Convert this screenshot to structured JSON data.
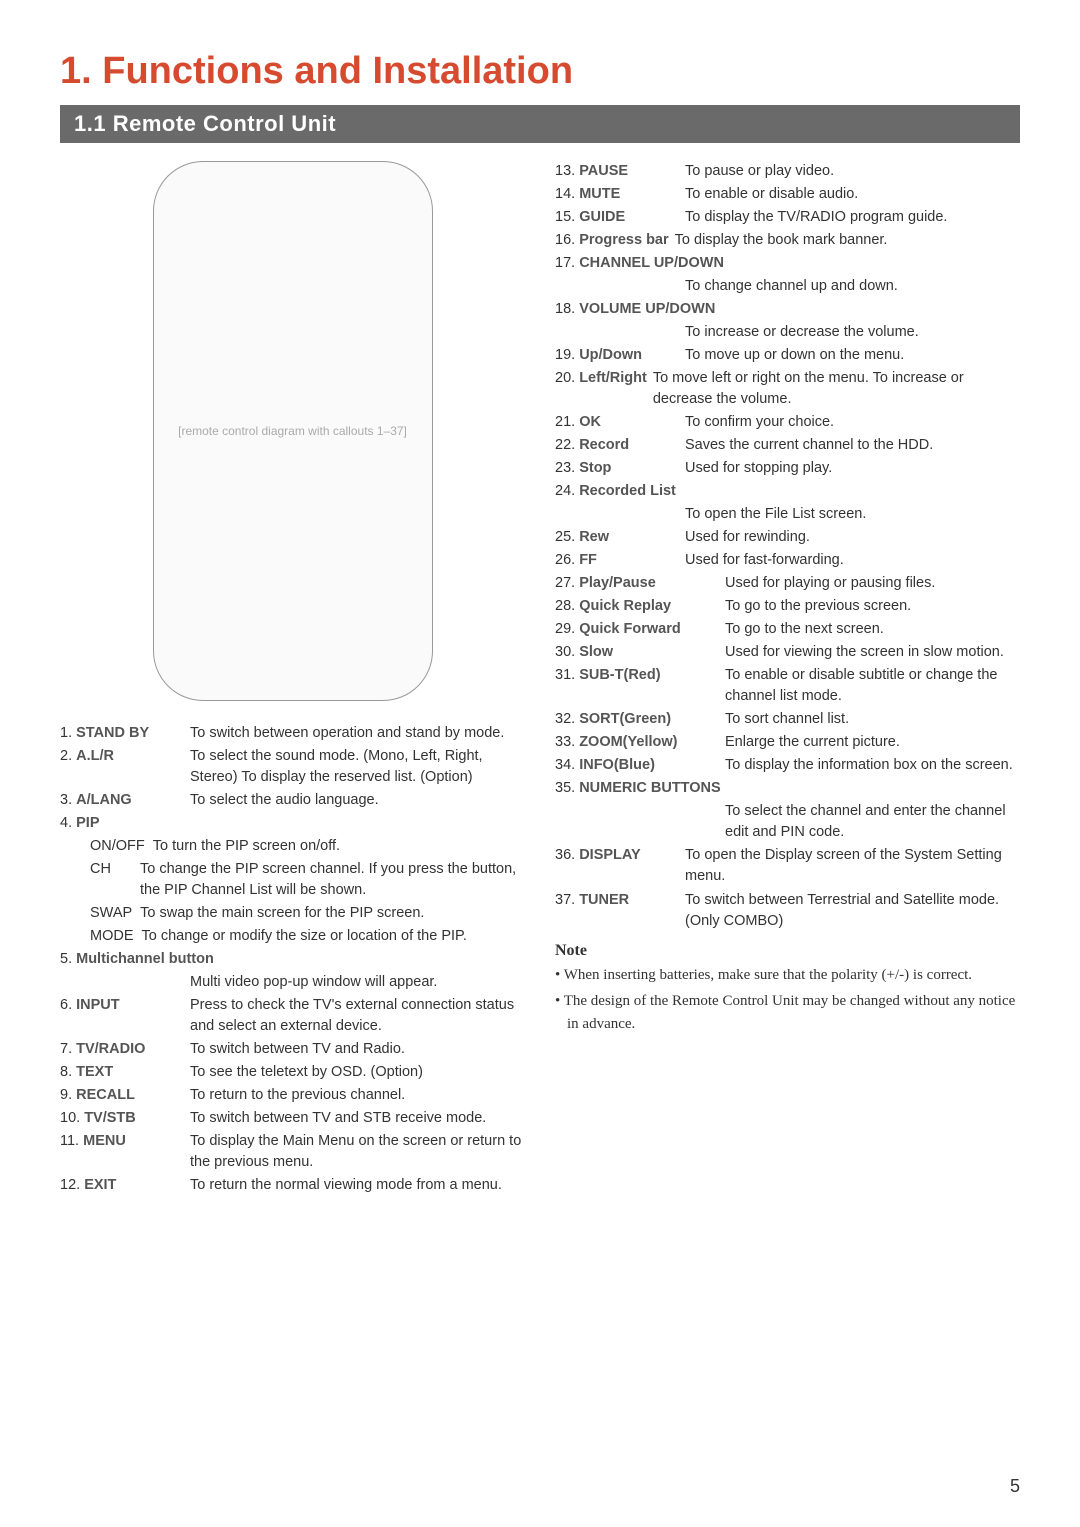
{
  "title": "1. Functions and Installation",
  "section": "1.1  Remote Control Unit",
  "remote_placeholder": "[remote control diagram with callouts 1–37]",
  "left_items": [
    {
      "num": "1.",
      "term": "STAND BY",
      "desc": "To switch between operation and stand by mode."
    },
    {
      "num": "2.",
      "term": "A.L/R",
      "desc": "To select the sound mode. (Mono, Left, Right, Stereo) To display the reserved list. (Option)"
    },
    {
      "num": "3.",
      "term": "A/LANG",
      "desc": "To select the audio language."
    },
    {
      "num": "4.",
      "term": "PIP",
      "desc": ""
    }
  ],
  "pip_subs": [
    {
      "term": "ON/OFF",
      "desc": "To turn the PIP screen on/off."
    },
    {
      "term": "CH",
      "desc": "To change the PIP screen channel. If you press the button, the PIP Channel List will be shown."
    },
    {
      "term": "SWAP",
      "desc": "To swap the main screen for the PIP screen."
    },
    {
      "term": "MODE",
      "desc": "To change or modify the size or location of the PIP."
    }
  ],
  "left_items2": [
    {
      "num": "5.",
      "term": "Multichannel button",
      "desc": "",
      "full": true
    },
    {
      "num": "",
      "term": "",
      "desc": "Multi video pop-up window will appear.",
      "indent": true
    },
    {
      "num": "6.",
      "term": "INPUT",
      "desc": "Press to check the TV's external connection status and select an external device."
    },
    {
      "num": "7.",
      "term": "TV/RADIO",
      "desc": "To switch between TV and Radio."
    },
    {
      "num": "8.",
      "term": "TEXT",
      "desc": "To see the teletext by OSD. (Option)"
    },
    {
      "num": "9.",
      "term": "RECALL",
      "desc": "To return to the previous channel."
    },
    {
      "num": "10.",
      "term": "TV/STB",
      "desc": "To switch between TV and STB receive mode."
    },
    {
      "num": "11.",
      "term": "MENU",
      "desc": "To display the Main Menu on the screen or return to the previous menu."
    },
    {
      "num": "12.",
      "term": "EXIT",
      "desc": "To return the normal viewing mode from a menu."
    }
  ],
  "right_items": [
    {
      "num": "13.",
      "term": "PAUSE",
      "desc": "To pause or play video."
    },
    {
      "num": "14.",
      "term": "MUTE",
      "desc": "To enable or disable audio."
    },
    {
      "num": "15.",
      "term": "GUIDE",
      "desc": "To display the TV/RADIO program guide."
    },
    {
      "num": "16.",
      "term": "Progress bar",
      "desc": "To display the book mark banner.",
      "inline": true
    },
    {
      "num": "17.",
      "term": "CHANNEL UP/DOWN",
      "desc": "",
      "full": true
    },
    {
      "num": "",
      "term": "",
      "desc": "To change channel up and down.",
      "indent": true
    },
    {
      "num": "18.",
      "term": "VOLUME UP/DOWN",
      "desc": "",
      "full": true
    },
    {
      "num": "",
      "term": "",
      "desc": "To increase or decrease the volume.",
      "indent": true
    },
    {
      "num": "19.",
      "term": "Up/Down",
      "desc": "To move up or down on the menu."
    },
    {
      "num": "20.",
      "term": "Left/Right",
      "desc": "To move left or right on the menu. To increase or decrease the volume.",
      "inline": true
    },
    {
      "num": "21.",
      "term": "OK",
      "desc": "To confirm your choice."
    },
    {
      "num": "22.",
      "term": "Record",
      "desc": "Saves the current channel to the HDD."
    },
    {
      "num": "23.",
      "term": "Stop",
      "desc": "Used for stopping play."
    },
    {
      "num": "24.",
      "term": "Recorded List",
      "desc": "",
      "full": true
    },
    {
      "num": "",
      "term": "",
      "desc": "To open the File List screen.",
      "indent": true
    },
    {
      "num": "25.",
      "term": "Rew",
      "desc": "Used for rewinding."
    },
    {
      "num": "26.",
      "term": "FF",
      "desc": "Used for fast-forwarding."
    }
  ],
  "right_items_wide": [
    {
      "num": "27.",
      "term": "Play/Pause",
      "desc": "Used for playing or pausing files."
    },
    {
      "num": "28.",
      "term": "Quick Replay",
      "desc": "To go to the previous screen."
    },
    {
      "num": "29.",
      "term": "Quick Forward",
      "desc": "To go to the next screen."
    },
    {
      "num": "30.",
      "term": "Slow",
      "desc": "Used for viewing the screen in slow motion."
    },
    {
      "num": "31.",
      "term": "SUB-T(Red)",
      "desc": "To enable or disable subtitle or change the channel list mode."
    },
    {
      "num": "32.",
      "term": "SORT(Green)",
      "desc": "To sort channel list."
    },
    {
      "num": "33.",
      "term": "ZOOM(Yellow)",
      "desc": "Enlarge the current picture."
    },
    {
      "num": "34.",
      "term": "INFO(Blue)",
      "desc": "To display the information box on the screen."
    },
    {
      "num": "35.",
      "term": "NUMERIC BUTTONS",
      "desc": "",
      "full": true
    },
    {
      "num": "",
      "term": "",
      "desc": "To select the channel and enter the channel edit and PIN code.",
      "indent": true
    },
    {
      "num": "36.",
      "term": "DISPLAY",
      "desc": "To open the Display screen of the System Setting menu.",
      "narrow": true
    },
    {
      "num": "37.",
      "term": "TUNER",
      "desc": "To switch between Terrestrial and Satellite mode. (Only COMBO)",
      "narrow": true
    }
  ],
  "note_head": "Note",
  "notes": [
    "• When inserting batteries, make sure that the polarity (+/-) is correct.",
    "• The design of the Remote Control Unit may be changed without any notice in advance."
  ],
  "page_number": "5"
}
